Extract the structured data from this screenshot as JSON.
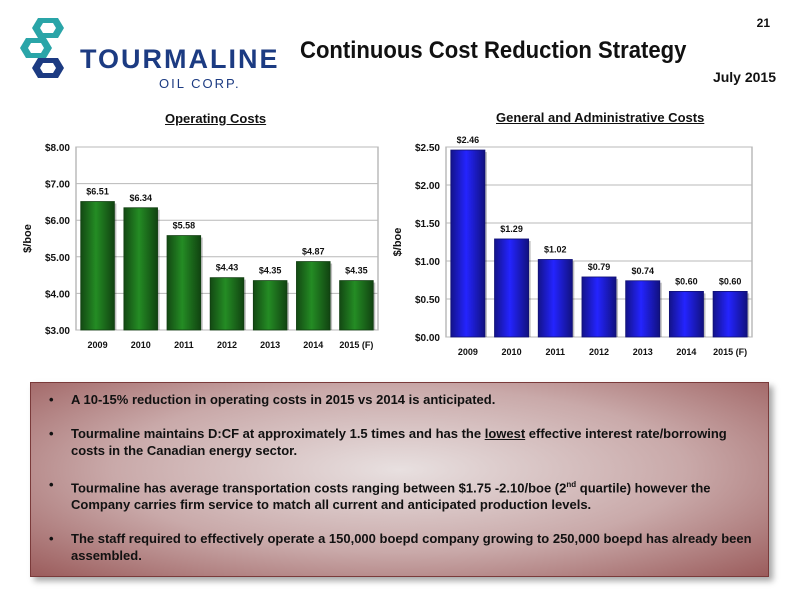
{
  "page_number": "21",
  "title": "Continuous Cost Reduction Strategy",
  "date": "July 2015",
  "logo": {
    "name": "TOURMALINE",
    "sub": "OIL CORP."
  },
  "colors": {
    "opex_bar": "#1f7a1f",
    "ga_bar": "#1f1fe6",
    "brand": "#1c3b82",
    "logo_teal": "#2aa5a8"
  },
  "chart_data": [
    {
      "type": "bar",
      "title": "Operating Costs",
      "ylabel": "$/boe",
      "xlabel": "",
      "categories": [
        "2009",
        "2010",
        "2011",
        "2012",
        "2013",
        "2014",
        "2015 (F)"
      ],
      "values": [
        6.51,
        6.34,
        5.58,
        4.43,
        4.35,
        4.87,
        4.35
      ],
      "value_labels": [
        "$6.51",
        "$6.34",
        "$5.58",
        "$4.43",
        "$4.35",
        "$4.87",
        "$4.35"
      ],
      "ylim": [
        3.0,
        8.0
      ],
      "yticks": [
        3.0,
        4.0,
        5.0,
        6.0,
        7.0,
        8.0
      ],
      "ytick_labels": [
        "$3.00",
        "$4.00",
        "$5.00",
        "$6.00",
        "$7.00",
        "$8.00"
      ],
      "grid": true,
      "color": "#1f7a1f"
    },
    {
      "type": "bar",
      "title": "General and Administrative Costs",
      "ylabel": "$/boe",
      "xlabel": "",
      "categories": [
        "2009",
        "2010",
        "2011",
        "2012",
        "2013",
        "2014",
        "2015 (F)"
      ],
      "values": [
        2.46,
        1.29,
        1.02,
        0.79,
        0.74,
        0.6,
        0.6
      ],
      "value_labels": [
        "$2.46",
        "$1.29",
        "$1.02",
        "$0.79",
        "$0.74",
        "$0.60",
        "$0.60"
      ],
      "ylim": [
        0.0,
        2.5
      ],
      "yticks": [
        0.0,
        0.5,
        1.0,
        1.5,
        2.0,
        2.5
      ],
      "ytick_labels": [
        "$0.00",
        "$0.50",
        "$1.00",
        "$1.50",
        "$2.00",
        "$2.50"
      ],
      "grid": true,
      "color": "#1f1fe6"
    }
  ],
  "bullets": {
    "b1": "A 10-15% reduction in operating costs in 2015 vs 2014 is anticipated.",
    "b2_pre": "Tourmaline maintains D:CF at approximately 1.5 times and has the ",
    "b2_u": "lowest",
    "b2_post": " effective interest rate/borrowing costs in the Canadian energy sector.",
    "b3_pre": "Tourmaline has average transportation costs ranging between $1.75 -2.10/boe (2",
    "b3_sup": "nd",
    "b3_post": " quartile) however the Company  carries firm service to match all current and anticipated production levels.",
    "b4": "The staff required to effectively operate a 150,000 boepd company growing to 250,000 boepd has already been assembled."
  }
}
